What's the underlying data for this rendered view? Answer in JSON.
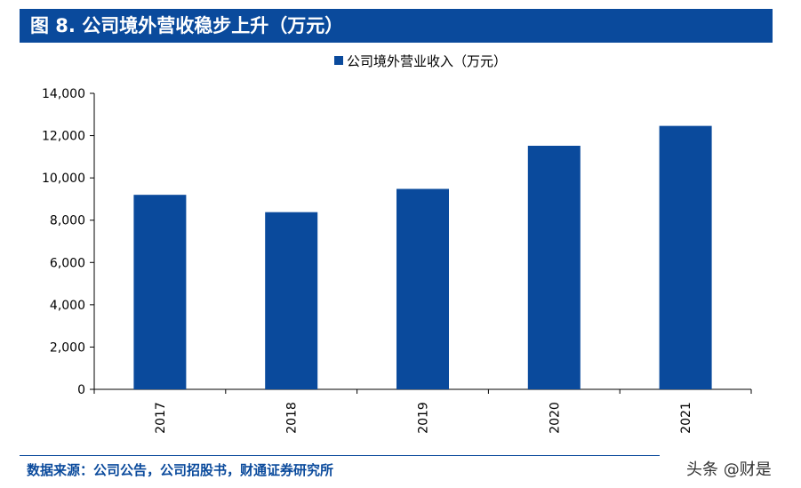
{
  "header": {
    "title": "图 8. 公司境外营收稳步上升（万元）"
  },
  "chart_data": {
    "type": "bar",
    "categories": [
      "2017",
      "2018",
      "2019",
      "2020",
      "2021"
    ],
    "series": [
      {
        "name": "公司境外营业收入（万元）",
        "values": [
          9200,
          8380,
          9480,
          11520,
          12460
        ]
      }
    ],
    "ylim": [
      0,
      14000
    ],
    "yticks": [
      "0",
      "2,000",
      "4,000",
      "6,000",
      "8,000",
      "10,000",
      "12,000",
      "14,000"
    ],
    "ytick_values": [
      0,
      2000,
      4000,
      6000,
      8000,
      10000,
      12000,
      14000
    ],
    "legend_position": "top-center",
    "grid": false,
    "bar_color": "#0a4a9c"
  },
  "footer": {
    "source": "数据来源：公司公告，公司招股书，财通证券研究所",
    "watermark": "头条 @财是"
  }
}
